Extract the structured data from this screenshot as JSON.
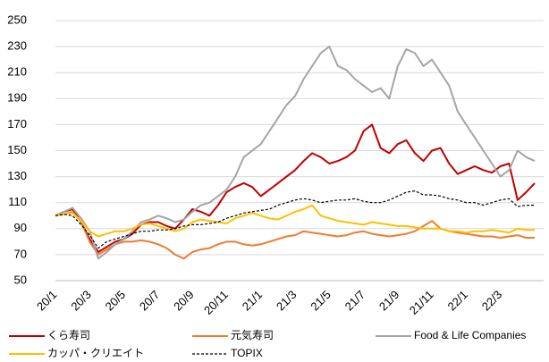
{
  "chart_data": {
    "type": "line",
    "categories": [
      "20/1",
      null,
      null,
      null,
      "20/3",
      null,
      null,
      null,
      "20/5",
      null,
      null,
      null,
      "20/7",
      null,
      null,
      null,
      "20/9",
      null,
      null,
      null,
      "20/11",
      null,
      null,
      null,
      "21/1",
      null,
      null,
      null,
      "21/3",
      null,
      null,
      null,
      "21/5",
      null,
      null,
      null,
      "21/7",
      null,
      null,
      null,
      "21/9",
      null,
      null,
      null,
      "21/11",
      null,
      null,
      null,
      "22/1",
      null,
      null,
      null,
      "22/3",
      null,
      null,
      null,
      null
    ],
    "series": [
      {
        "name": "くら寿司",
        "color": "#c00000",
        "values": [
          100,
          103,
          105,
          95,
          82,
          72,
          76,
          80,
          82,
          86,
          93,
          95,
          95,
          92,
          90,
          97,
          105,
          103,
          100,
          108,
          118,
          122,
          125,
          122,
          115,
          120,
          125,
          130,
          135,
          142,
          148,
          145,
          140,
          142,
          145,
          150,
          165,
          170,
          152,
          148,
          155,
          158,
          148,
          142,
          150,
          152,
          140,
          132,
          135,
          138,
          135,
          133,
          138,
          140,
          112,
          118,
          125
        ]
      },
      {
        "name": "元気寿司",
        "color": "#ed7d31",
        "values": [
          100,
          101,
          103,
          95,
          80,
          70,
          74,
          78,
          80,
          80,
          81,
          80,
          78,
          75,
          70,
          67,
          72,
          74,
          75,
          78,
          80,
          80,
          78,
          77,
          78,
          80,
          82,
          84,
          85,
          88,
          87,
          86,
          85,
          84,
          85,
          87,
          88,
          86,
          85,
          84,
          85,
          86,
          88,
          92,
          96,
          90,
          88,
          87,
          86,
          85,
          84,
          84,
          83,
          84,
          85,
          83,
          83
        ]
      },
      {
        "name": "Food & Life Companies",
        "color": "#a5a5a5",
        "values": [
          100,
          103,
          106,
          98,
          88,
          67,
          72,
          78,
          82,
          88,
          95,
          97,
          100,
          98,
          95,
          97,
          103,
          108,
          110,
          115,
          120,
          130,
          145,
          150,
          155,
          165,
          175,
          185,
          192,
          205,
          215,
          225,
          230,
          215,
          212,
          205,
          200,
          195,
          198,
          190,
          215,
          228,
          225,
          215,
          220,
          210,
          200,
          180,
          170,
          160,
          150,
          140,
          130,
          135,
          150,
          145,
          142
        ]
      },
      {
        "name": "カッパ・クリエイト",
        "color": "#ffc000",
        "values": [
          100,
          101,
          102,
          96,
          88,
          84,
          86,
          88,
          88,
          90,
          93,
          94,
          92,
          90,
          88,
          90,
          95,
          97,
          96,
          95,
          94,
          98,
          100,
          102,
          100,
          98,
          97,
          100,
          103,
          105,
          108,
          100,
          98,
          96,
          95,
          94,
          93,
          95,
          94,
          93,
          92,
          92,
          91,
          90,
          90,
          90,
          88,
          88,
          87,
          88,
          88,
          89,
          88,
          87,
          90,
          89,
          89
        ]
      },
      {
        "name": "TOPIX",
        "color": "#000000",
        "dashed": true,
        "values": [
          100,
          101,
          100,
          93,
          85,
          75,
          80,
          82,
          84,
          86,
          88,
          88,
          89,
          89,
          90,
          92,
          93,
          93,
          94,
          95,
          98,
          100,
          102,
          103,
          104,
          105,
          108,
          110,
          112,
          113,
          112,
          110,
          111,
          112,
          112,
          113,
          111,
          110,
          110,
          112,
          115,
          118,
          119,
          116,
          116,
          115,
          113,
          112,
          110,
          110,
          108,
          110,
          112,
          113,
          107,
          108,
          108
        ]
      }
    ],
    "ylim": [
      50,
      250
    ],
    "yticks": [
      50,
      70,
      90,
      110,
      130,
      150,
      170,
      190,
      210,
      230,
      250
    ],
    "grid": true
  }
}
